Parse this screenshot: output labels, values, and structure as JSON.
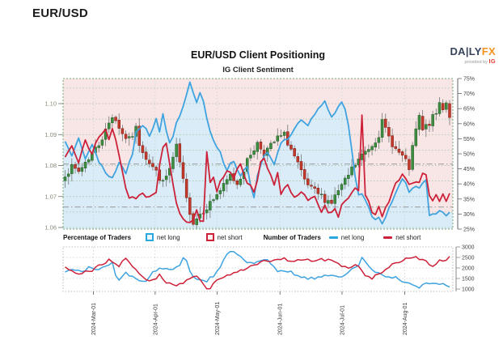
{
  "page": {
    "title": "EUR/USD"
  },
  "chart": {
    "title": "EUR/USD Client Positioning",
    "subtitle": "IG Client Sentiment",
    "logo": {
      "brand_left": "DA|LY",
      "brand_right": "FX",
      "tagline": "provided by",
      "tagline_brand": "IG"
    },
    "legend": {
      "pct_label": "Percentage of Traders",
      "pct_long": "net long",
      "pct_short": "net short",
      "num_label": "Number of Traders",
      "num_long": "net long",
      "num_short": "net short"
    }
  },
  "chart_data": {
    "type": "candlestick+line",
    "title": "EUR/USD Client Positioning",
    "subtitle": "IG Client Sentiment",
    "n_points": 115,
    "x_axis": {
      "tick_labels": [
        "2024-Mar-01",
        "2024-Apr-01",
        "2024-May-01",
        "2024-Jun-01",
        "2024-Jul-01",
        "2024-Aug-01"
      ],
      "tick_positions": [
        8.4,
        26.7,
        45.1,
        63.7,
        82.1,
        100.7
      ]
    },
    "price_axis": {
      "tick_labels": [
        "1.06",
        "1.07",
        "1.08",
        "1.09",
        "1.10"
      ],
      "range": [
        1.0595,
        1.1081
      ]
    },
    "percent_axis": {
      "tick_labels": [
        "25%",
        "30%",
        "35%",
        "40%",
        "45%",
        "50%",
        "55%",
        "60%",
        "65%",
        "70%",
        "75%"
      ],
      "range": [
        25,
        75
      ]
    },
    "traders_axis": {
      "tick_labels": [
        "1000",
        "1500",
        "2000",
        "2500",
        "3000"
      ],
      "range": [
        885,
        3000
      ]
    },
    "reference_price_lines": [
      1.0805,
      1.0666
    ],
    "colors": {
      "net_long": "#3fa3e0",
      "net_short": "#cd2139",
      "fill_long": "#d9ecf8",
      "fill_short": "#f8e6e6",
      "candle_up": "#3e8e41",
      "candle_down": "#c33a2c",
      "grid_green": "#9cbf9c",
      "grid_gray": "#9a9a9a"
    },
    "price_close_anchors": [
      [
        0,
        1.0775
      ],
      [
        2,
        1.0792
      ],
      [
        4,
        1.078
      ],
      [
        6,
        1.0812
      ],
      [
        8,
        1.0838
      ],
      [
        10,
        1.087
      ],
      [
        12,
        1.0912
      ],
      [
        14,
        1.0962
      ],
      [
        15,
        1.0948
      ],
      [
        17,
        1.0902
      ],
      [
        19,
        1.0882
      ],
      [
        21,
        1.0918
      ],
      [
        22,
        1.0872
      ],
      [
        24,
        1.0828
      ],
      [
        26,
        1.0795
      ],
      [
        28,
        1.0762
      ],
      [
        29,
        1.0742
      ],
      [
        31,
        1.0788
      ],
      [
        33,
        1.0858
      ],
      [
        34,
        1.0808
      ],
      [
        36,
        1.0688
      ],
      [
        38,
        1.0618
      ],
      [
        40,
        1.0645
      ],
      [
        43,
        1.0678
      ],
      [
        45,
        1.0708
      ],
      [
        47,
        1.0732
      ],
      [
        49,
        1.0768
      ],
      [
        51,
        1.0742
      ],
      [
        53,
        1.0788
      ],
      [
        55,
        1.0838
      ],
      [
        57,
        1.0872
      ],
      [
        59,
        1.0842
      ],
      [
        61,
        1.0862
      ],
      [
        63,
        1.0888
      ],
      [
        65,
        1.0898
      ],
      [
        67,
        1.0852
      ],
      [
        69,
        1.0802
      ],
      [
        71,
        1.0748
      ],
      [
        73,
        1.0722
      ],
      [
        75,
        1.0708
      ],
      [
        77,
        1.0692
      ],
      [
        79,
        1.0682
      ],
      [
        81,
        1.0718
      ],
      [
        83,
        1.0748
      ],
      [
        85,
        1.0788
      ],
      [
        87,
        1.0818
      ],
      [
        89,
        1.0845
      ],
      [
        91,
        1.0868
      ],
      [
        93,
        1.0902
      ],
      [
        94,
        1.0938
      ],
      [
        96,
        1.0892
      ],
      [
        98,
        1.0852
      ],
      [
        100,
        1.0828
      ],
      [
        102,
        1.0792
      ],
      [
        104,
        1.0915
      ],
      [
        105,
        1.0955
      ],
      [
        106,
        1.0912
      ],
      [
        108,
        1.0938
      ],
      [
        110,
        1.0968
      ],
      [
        111,
        1.1002
      ],
      [
        112,
        1.0988
      ],
      [
        113,
        1.1005
      ],
      [
        114,
        1.0962
      ]
    ],
    "pct_long_anchors": [
      [
        0,
        54
      ],
      [
        2,
        50
      ],
      [
        4,
        56
      ],
      [
        6,
        49
      ],
      [
        8,
        53
      ],
      [
        10,
        47
      ],
      [
        12,
        44
      ],
      [
        14,
        42
      ],
      [
        16,
        47
      ],
      [
        18,
        44
      ],
      [
        20,
        50
      ],
      [
        21,
        57
      ],
      [
        23,
        60
      ],
      [
        25,
        56
      ],
      [
        27,
        62
      ],
      [
        28,
        58
      ],
      [
        29,
        64
      ],
      [
        30,
        58
      ],
      [
        31,
        53
      ],
      [
        32,
        56
      ],
      [
        33,
        60
      ],
      [
        34,
        63
      ],
      [
        35,
        66
      ],
      [
        36,
        70
      ],
      [
        37,
        73.5
      ],
      [
        38,
        71
      ],
      [
        39,
        67
      ],
      [
        40,
        71
      ],
      [
        41,
        68
      ],
      [
        42,
        62
      ],
      [
        43,
        58
      ],
      [
        44,
        55
      ],
      [
        46,
        50
      ],
      [
        48,
        45
      ],
      [
        50,
        48
      ],
      [
        52,
        43
      ],
      [
        54,
        45
      ],
      [
        55,
        39
      ],
      [
        56,
        36
      ],
      [
        57,
        43
      ],
      [
        58,
        47
      ],
      [
        60,
        51
      ],
      [
        62,
        47
      ],
      [
        64,
        53
      ],
      [
        66,
        55
      ],
      [
        68,
        58
      ],
      [
        70,
        61
      ],
      [
        72,
        59
      ],
      [
        74,
        63
      ],
      [
        76,
        66
      ],
      [
        77,
        67
      ],
      [
        78,
        65
      ],
      [
        79,
        62
      ],
      [
        80,
        64
      ],
      [
        81,
        66
      ],
      [
        82,
        67
      ],
      [
        83,
        65
      ],
      [
        84,
        60
      ],
      [
        85,
        52
      ],
      [
        86,
        42
      ],
      [
        87,
        37
      ],
      [
        88,
        36
      ],
      [
        90,
        32.5
      ],
      [
        92,
        27.5
      ],
      [
        93,
        29.5
      ],
      [
        94,
        27
      ],
      [
        95,
        29.5
      ],
      [
        97,
        34.5
      ],
      [
        99,
        40
      ],
      [
        100,
        41.5
      ],
      [
        101,
        40.5
      ],
      [
        102,
        37.5
      ],
      [
        103,
        38
      ],
      [
        104,
        39
      ],
      [
        105,
        38.5
      ],
      [
        106,
        41
      ],
      [
        107,
        42
      ],
      [
        107.5,
        29
      ],
      [
        109,
        30.5
      ],
      [
        110,
        29.5
      ],
      [
        111,
        31
      ],
      [
        112,
        30
      ],
      [
        113,
        29
      ],
      [
        114,
        30
      ]
    ],
    "pct_long_follows_short": [
      88,
      107
    ],
    "pct_short_anchors": [
      [
        0,
        49
      ],
      [
        2,
        53
      ],
      [
        4,
        47
      ],
      [
        6,
        54
      ],
      [
        8,
        50
      ],
      [
        10,
        56
      ],
      [
        12,
        58
      ],
      [
        13,
        55
      ],
      [
        14,
        59
      ],
      [
        15,
        54
      ],
      [
        16,
        50
      ],
      [
        17,
        44
      ],
      [
        18,
        38
      ],
      [
        19,
        36
      ],
      [
        21,
        35.5
      ],
      [
        23,
        37
      ],
      [
        25,
        35.5
      ],
      [
        27,
        36.5
      ],
      [
        28,
        46
      ],
      [
        29,
        52
      ],
      [
        30,
        54
      ],
      [
        31,
        47
      ],
      [
        32,
        40
      ],
      [
        33,
        34
      ],
      [
        34,
        30
      ],
      [
        35,
        28.5
      ],
      [
        37,
        26.5
      ],
      [
        38,
        28
      ],
      [
        39,
        31
      ],
      [
        40,
        28
      ],
      [
        41,
        27
      ],
      [
        42,
        50
      ],
      [
        43,
        40
      ],
      [
        44,
        42
      ],
      [
        45,
        38
      ],
      [
        46,
        41
      ],
      [
        48,
        45
      ],
      [
        50,
        42
      ],
      [
        52,
        47
      ],
      [
        54,
        40
      ],
      [
        56,
        38
      ],
      [
        57,
        42
      ],
      [
        58,
        48
      ],
      [
        59,
        49
      ],
      [
        60,
        45
      ],
      [
        62,
        40
      ],
      [
        63,
        43
      ],
      [
        64,
        37
      ],
      [
        66,
        39
      ],
      [
        68,
        36
      ],
      [
        70,
        38
      ],
      [
        72,
        34
      ],
      [
        74,
        36
      ],
      [
        76,
        31
      ],
      [
        77,
        33
      ],
      [
        78,
        30
      ],
      [
        80,
        32
      ],
      [
        81,
        29.5
      ],
      [
        82,
        33
      ],
      [
        84,
        36
      ],
      [
        86,
        38
      ],
      [
        87,
        38
      ],
      [
        88,
        63
      ],
      [
        89,
        36
      ],
      [
        90,
        34.5
      ],
      [
        91,
        31
      ],
      [
        92,
        29.5
      ],
      [
        93,
        32
      ],
      [
        94,
        29
      ],
      [
        95,
        31.5
      ],
      [
        96,
        34
      ],
      [
        97,
        38
      ],
      [
        98,
        40
      ],
      [
        99,
        42
      ],
      [
        100,
        43
      ],
      [
        101,
        42.5
      ],
      [
        102,
        39.5
      ],
      [
        103,
        40
      ],
      [
        104,
        41
      ],
      [
        105,
        40.5
      ],
      [
        106,
        43
      ],
      [
        107,
        43.5
      ],
      [
        108,
        36
      ],
      [
        109,
        34.5
      ],
      [
        110,
        36.5
      ],
      [
        111,
        34
      ],
      [
        112,
        36
      ],
      [
        113,
        35
      ],
      [
        114,
        36.5
      ]
    ],
    "traders_long_anchors": [
      [
        0,
        1780
      ],
      [
        3,
        1950
      ],
      [
        5,
        1850
      ],
      [
        7,
        2000
      ],
      [
        9,
        1900
      ],
      [
        11,
        2000
      ],
      [
        13,
        2150
      ],
      [
        14,
        2230
      ],
      [
        15,
        1700
      ],
      [
        16,
        1390
      ],
      [
        18,
        1750
      ],
      [
        20,
        1550
      ],
      [
        22,
        1350
      ],
      [
        24,
        1300
      ],
      [
        26,
        1800
      ],
      [
        28,
        2040
      ],
      [
        30,
        1950
      ],
      [
        32,
        1960
      ],
      [
        34,
        2100
      ],
      [
        35,
        2420
      ],
      [
        36,
        2300
      ],
      [
        37,
        1800
      ],
      [
        38,
        1530
      ],
      [
        40,
        1450
      ],
      [
        42,
        1400
      ],
      [
        44,
        1650
      ],
      [
        45,
        1850
      ],
      [
        46,
        2100
      ],
      [
        47,
        2400
      ],
      [
        48,
        2600
      ],
      [
        49,
        2720
      ],
      [
        50,
        2750
      ],
      [
        51,
        2600
      ],
      [
        52,
        2550
      ],
      [
        53,
        2400
      ],
      [
        54,
        2300
      ],
      [
        55,
        2200
      ],
      [
        56,
        2180
      ],
      [
        58,
        2300
      ],
      [
        59,
        2420
      ],
      [
        60,
        2350
      ],
      [
        61,
        2200
      ],
      [
        62,
        2000
      ],
      [
        63,
        1780
      ],
      [
        65,
        1850
      ],
      [
        67,
        1800
      ],
      [
        69,
        1600
      ],
      [
        71,
        1530
      ],
      [
        73,
        1500
      ],
      [
        75,
        1530
      ],
      [
        77,
        1600
      ],
      [
        79,
        1660
      ],
      [
        81,
        1600
      ],
      [
        83,
        1650
      ],
      [
        85,
        1960
      ],
      [
        87,
        2100
      ],
      [
        88,
        2550
      ],
      [
        89,
        2300
      ],
      [
        90,
        2040
      ],
      [
        92,
        1800
      ],
      [
        94,
        1660
      ],
      [
        96,
        1600
      ],
      [
        98,
        1530
      ],
      [
        100,
        1400
      ],
      [
        102,
        1270
      ],
      [
        104,
        1150
      ],
      [
        105,
        1100
      ],
      [
        106,
        1270
      ],
      [
        108,
        1250
      ],
      [
        110,
        1270
      ],
      [
        112,
        1200
      ],
      [
        114,
        1100
      ]
    ],
    "traders_short_anchors": [
      [
        0,
        2000
      ],
      [
        2,
        1850
      ],
      [
        4,
        1660
      ],
      [
        6,
        1800
      ],
      [
        8,
        1900
      ],
      [
        10,
        2100
      ],
      [
        12,
        2250
      ],
      [
        13,
        2360
      ],
      [
        15,
        2230
      ],
      [
        16,
        2100
      ],
      [
        17,
        2300
      ],
      [
        18,
        2420
      ],
      [
        19,
        2300
      ],
      [
        20,
        2100
      ],
      [
        21,
        1920
      ],
      [
        23,
        1600
      ],
      [
        25,
        1390
      ],
      [
        27,
        1550
      ],
      [
        28,
        1660
      ],
      [
        30,
        1350
      ],
      [
        31,
        1270
      ],
      [
        33,
        1150
      ],
      [
        35,
        1300
      ],
      [
        37,
        1500
      ],
      [
        39,
        1660
      ],
      [
        40,
        1500
      ],
      [
        41,
        1200
      ],
      [
        42,
        1000
      ],
      [
        43,
        1050
      ],
      [
        45,
        1400
      ],
      [
        46,
        1530
      ],
      [
        48,
        1700
      ],
      [
        50,
        1780
      ],
      [
        52,
        1900
      ],
      [
        54,
        2000
      ],
      [
        56,
        2100
      ],
      [
        58,
        2250
      ],
      [
        59,
        2420
      ],
      [
        61,
        2300
      ],
      [
        63,
        2350
      ],
      [
        65,
        2420
      ],
      [
        67,
        2300
      ],
      [
        69,
        2380
      ],
      [
        71,
        2420
      ],
      [
        73,
        2300
      ],
      [
        75,
        2420
      ],
      [
        77,
        2350
      ],
      [
        79,
        2420
      ],
      [
        80,
        2300
      ],
      [
        82,
        2100
      ],
      [
        84,
        1960
      ],
      [
        86,
        2100
      ],
      [
        87,
        2150
      ],
      [
        88,
        1800
      ],
      [
        89,
        1660
      ],
      [
        91,
        1530
      ],
      [
        93,
        1700
      ],
      [
        95,
        1920
      ],
      [
        97,
        2180
      ],
      [
        99,
        2300
      ],
      [
        101,
        2420
      ],
      [
        103,
        2550
      ],
      [
        105,
        2400
      ],
      [
        107,
        2300
      ],
      [
        108,
        2150
      ],
      [
        109,
        2040
      ],
      [
        111,
        2420
      ],
      [
        113,
        2300
      ],
      [
        114,
        2480
      ]
    ]
  }
}
